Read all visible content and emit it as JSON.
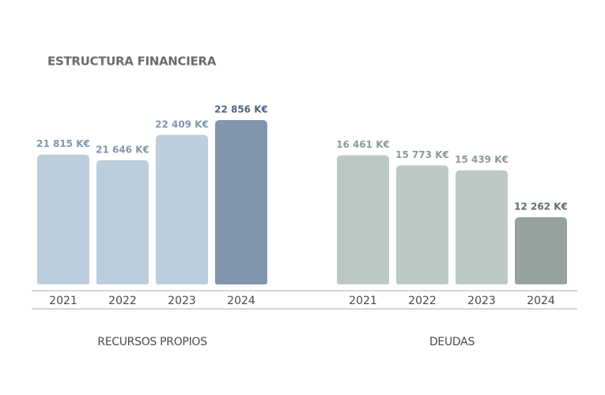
{
  "header": {
    "title": "ESTRUCTURA FINANCIERA"
  },
  "chart_data": [
    {
      "type": "bar",
      "title": "RECURSOS PROPIOS",
      "categories": [
        "2021",
        "2022",
        "2023",
        "2024"
      ],
      "values": [
        21815,
        21646,
        22409,
        22856
      ],
      "value_labels": [
        "21 815 K€",
        "21 646 K€",
        "22 409 K€",
        "22 856 K€"
      ],
      "colors": [
        "#bccddb",
        "#bccddb",
        "#bccddb",
        "#7f96ad"
      ],
      "label_colors": [
        "#7f96b0",
        "#7f96b0",
        "#7f96b0",
        "#4e6582"
      ],
      "ylim": [
        17900,
        23500
      ]
    },
    {
      "type": "bar",
      "title": "DEUDAS",
      "categories": [
        "2021",
        "2022",
        "2023",
        "2024"
      ],
      "values": [
        16461,
        15773,
        15439,
        12262
      ],
      "value_labels": [
        "16 461 K€",
        "15 773 K€",
        "15 439 K€",
        "12 262 K€"
      ],
      "colors": [
        "#bcc8c3",
        "#bcc8c3",
        "#bcc8c3",
        "#95a39c"
      ],
      "label_colors": [
        "#8d9b95",
        "#8d9b95",
        "#8d9b95",
        "#5f6d67"
      ],
      "ylim": [
        7700,
        20300
      ]
    }
  ]
}
